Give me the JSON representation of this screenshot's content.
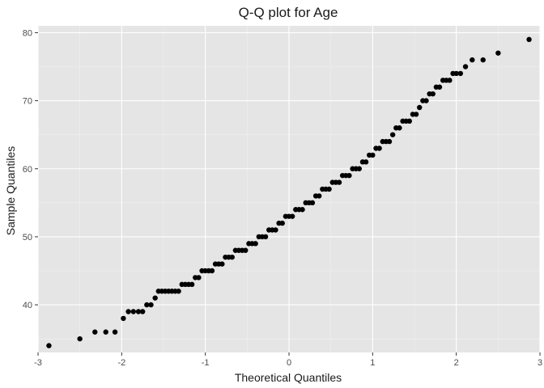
{
  "chart_data": {
    "type": "scatter",
    "title": "Q-Q plot for Age",
    "xlabel": "Theoretical Quantiles",
    "ylabel": "Sample Quantiles",
    "xlim": [
      -3.0,
      3.0
    ],
    "ylim": [
      33,
      81
    ],
    "xticks": [
      -3,
      -2,
      -1,
      0,
      1,
      2,
      3
    ],
    "xtick_labels": [
      "-3",
      "-2",
      "-1",
      "0",
      "1",
      "2",
      "3"
    ],
    "yticks": [
      40,
      50,
      60,
      70,
      80
    ],
    "ytick_labels": [
      "40",
      "50",
      "60",
      "70",
      "80"
    ],
    "grid": true,
    "legend": "none",
    "point_color": "#000000",
    "panel_color": "#e5e5e5",
    "points": [
      [
        -2.87,
        34
      ],
      [
        -2.5,
        35
      ],
      [
        -2.32,
        36
      ],
      [
        -2.19,
        36
      ],
      [
        -2.08,
        36
      ],
      [
        -1.98,
        38
      ],
      [
        -1.92,
        39
      ],
      [
        -1.86,
        39
      ],
      [
        -1.8,
        39
      ],
      [
        -1.75,
        39
      ],
      [
        -1.7,
        40
      ],
      [
        -1.65,
        40
      ],
      [
        -1.6,
        41
      ],
      [
        -1.56,
        42
      ],
      [
        -1.52,
        42
      ],
      [
        -1.48,
        42
      ],
      [
        -1.44,
        42
      ],
      [
        -1.4,
        42
      ],
      [
        -1.36,
        42
      ],
      [
        -1.32,
        42
      ],
      [
        -1.28,
        43
      ],
      [
        -1.24,
        43
      ],
      [
        -1.2,
        43
      ],
      [
        -1.16,
        43
      ],
      [
        -1.12,
        44
      ],
      [
        -1.08,
        44
      ],
      [
        -1.04,
        45
      ],
      [
        -1.0,
        45
      ],
      [
        -0.96,
        45
      ],
      [
        -0.92,
        45
      ],
      [
        -0.88,
        46
      ],
      [
        -0.84,
        46
      ],
      [
        -0.8,
        46
      ],
      [
        -0.76,
        47
      ],
      [
        -0.72,
        47
      ],
      [
        -0.68,
        47
      ],
      [
        -0.64,
        48
      ],
      [
        -0.6,
        48
      ],
      [
        -0.56,
        48
      ],
      [
        -0.52,
        48
      ],
      [
        -0.48,
        49
      ],
      [
        -0.44,
        49
      ],
      [
        -0.4,
        49
      ],
      [
        -0.36,
        50
      ],
      [
        -0.32,
        50
      ],
      [
        -0.28,
        50
      ],
      [
        -0.24,
        51
      ],
      [
        -0.2,
        51
      ],
      [
        -0.16,
        51
      ],
      [
        -0.12,
        52
      ],
      [
        -0.08,
        52
      ],
      [
        -0.04,
        53
      ],
      [
        0.0,
        53
      ],
      [
        0.04,
        53
      ],
      [
        0.08,
        54
      ],
      [
        0.12,
        54
      ],
      [
        0.16,
        54
      ],
      [
        0.2,
        55
      ],
      [
        0.24,
        55
      ],
      [
        0.28,
        55
      ],
      [
        0.32,
        56
      ],
      [
        0.36,
        56
      ],
      [
        0.4,
        57
      ],
      [
        0.44,
        57
      ],
      [
        0.48,
        57
      ],
      [
        0.52,
        58
      ],
      [
        0.56,
        58
      ],
      [
        0.6,
        58
      ],
      [
        0.64,
        59
      ],
      [
        0.68,
        59
      ],
      [
        0.72,
        59
      ],
      [
        0.76,
        60
      ],
      [
        0.8,
        60
      ],
      [
        0.84,
        60
      ],
      [
        0.88,
        61
      ],
      [
        0.92,
        61
      ],
      [
        0.96,
        62
      ],
      [
        1.0,
        62
      ],
      [
        1.04,
        63
      ],
      [
        1.08,
        63
      ],
      [
        1.12,
        64
      ],
      [
        1.16,
        64
      ],
      [
        1.2,
        64
      ],
      [
        1.24,
        65
      ],
      [
        1.28,
        66
      ],
      [
        1.32,
        66
      ],
      [
        1.36,
        67
      ],
      [
        1.4,
        67
      ],
      [
        1.44,
        67
      ],
      [
        1.48,
        68
      ],
      [
        1.52,
        68
      ],
      [
        1.56,
        69
      ],
      [
        1.6,
        70
      ],
      [
        1.64,
        70
      ],
      [
        1.68,
        71
      ],
      [
        1.72,
        71
      ],
      [
        1.76,
        72
      ],
      [
        1.8,
        72
      ],
      [
        1.84,
        73
      ],
      [
        1.88,
        73
      ],
      [
        1.92,
        73
      ],
      [
        1.96,
        74
      ],
      [
        2.0,
        74
      ],
      [
        2.05,
        74
      ],
      [
        2.11,
        75
      ],
      [
        2.19,
        76
      ],
      [
        2.32,
        76
      ],
      [
        2.5,
        77
      ],
      [
        2.87,
        79
      ]
    ]
  }
}
